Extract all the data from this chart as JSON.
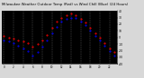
{
  "title": "Milwaukee Weather Outdoor Temp (Red) vs Wind Chill (Blue) (24 Hours)",
  "title_fontsize": 2.8,
  "background_color": "#d8d8d8",
  "plot_bg": "#000000",
  "grid_color": "#888888",
  "hours": [
    0,
    1,
    2,
    3,
    4,
    5,
    6,
    7,
    8,
    9,
    10,
    11,
    12,
    13,
    14,
    15,
    16,
    17,
    18,
    19,
    20,
    21,
    22,
    23
  ],
  "temp_red": [
    2,
    0,
    -2,
    -4,
    -6,
    -8,
    -14,
    -10,
    -4,
    4,
    14,
    24,
    30,
    34,
    36,
    34,
    28,
    22,
    14,
    6,
    -1,
    -8,
    -16,
    -22
  ],
  "wind_blue": [
    -4,
    -6,
    -8,
    -12,
    -16,
    -20,
    -28,
    -22,
    -14,
    -4,
    6,
    16,
    24,
    28,
    30,
    29,
    24,
    18,
    10,
    2,
    -5,
    -12,
    -20,
    -28
  ],
  "ylim": [
    -40,
    40
  ],
  "ytick_vals": [
    40,
    30,
    20,
    10,
    0,
    -10,
    -20,
    -30,
    -40
  ],
  "ytick_labels": [
    "40",
    "30",
    "20",
    "10",
    "0",
    "-10",
    "-20",
    "-30",
    "-40"
  ],
  "red_color": "#ff0000",
  "blue_color": "#0000ff",
  "black_color": "#000000",
  "marker_size": 1.0,
  "vline_hours": [
    0,
    2,
    4,
    6,
    8,
    10,
    12,
    14,
    16,
    18,
    20,
    22
  ],
  "xtick_hours": [
    0,
    2,
    4,
    6,
    8,
    10,
    12,
    14,
    16,
    18,
    20,
    22
  ],
  "xtick_labels": [
    "0",
    "2",
    "4",
    "6",
    "8",
    "10",
    "12",
    "14",
    "16",
    "18",
    "20",
    "22"
  ]
}
